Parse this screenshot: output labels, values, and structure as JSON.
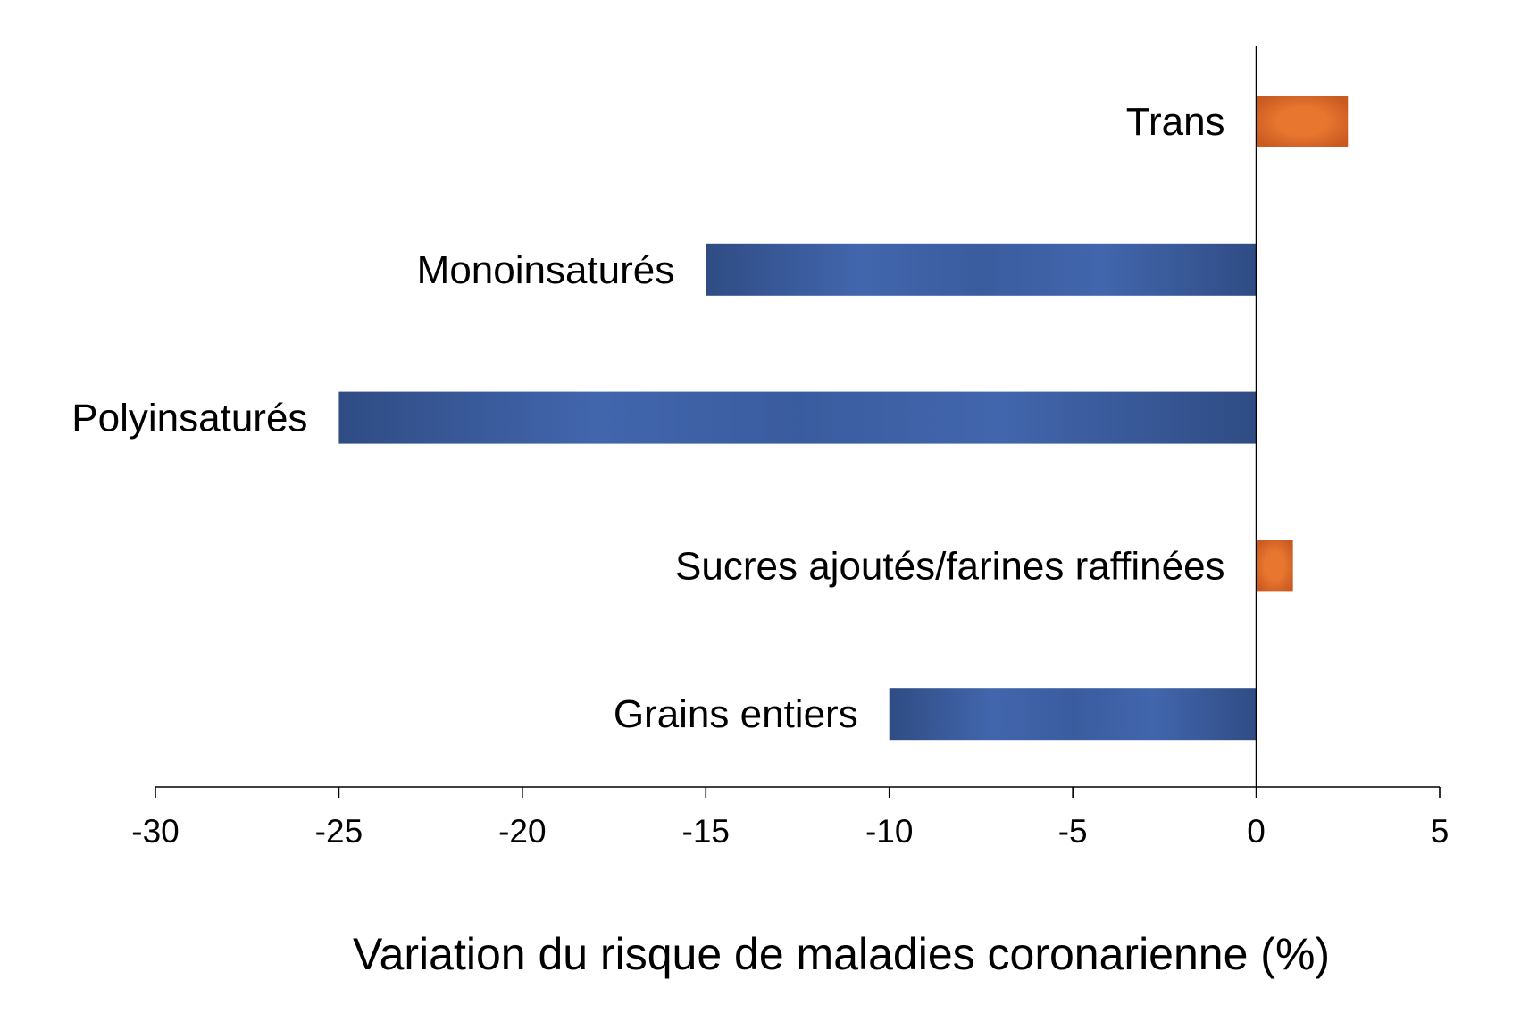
{
  "chart_data": {
    "type": "bar",
    "orientation": "horizontal",
    "categories": [
      "Trans",
      "Monoinsaturés",
      "Polyinsaturés",
      "Sucres ajoutés/farines raffinées",
      "Grains entiers"
    ],
    "values": [
      2.5,
      -15,
      -25,
      1,
      -10
    ],
    "title": "",
    "xlabel": "Variation du risque de maladies coronarienne (%)",
    "ylabel": "",
    "xlim": [
      -30,
      5
    ],
    "xticks": [
      -30,
      -25,
      -20,
      -15,
      -10,
      -5,
      0,
      5
    ],
    "grid": false,
    "legend": "none",
    "colors": {
      "negative": "#4266ad",
      "negative_edge": "#2f4c84",
      "positive": "#e8762f",
      "positive_edge": "#c95a22"
    }
  }
}
